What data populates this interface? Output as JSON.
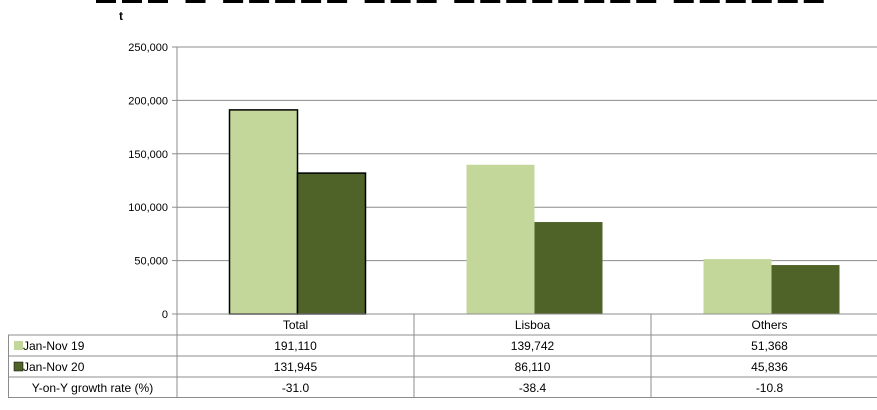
{
  "chart_data": {
    "type": "bar",
    "title": "",
    "unit_label": "t",
    "categories": [
      "Total",
      "Lisboa",
      "Others"
    ],
    "series": [
      {
        "name": "Jan-Nov 19",
        "values": [
          191110,
          139742,
          51368
        ],
        "labels": [
          "191,110",
          "139,742",
          "51,368"
        ],
        "color": "#c4d79b"
      },
      {
        "name": "Jan-Nov 20",
        "values": [
          131945,
          86110,
          45836
        ],
        "labels": [
          "131,945",
          "86,110",
          "45,836"
        ],
        "color": "#4f6228"
      }
    ],
    "growth_row": {
      "label": "Y-on-Y growth rate (%)",
      "values": [
        "-31.0",
        "-38.4",
        "-10.8"
      ]
    },
    "ylim": [
      0,
      250000
    ],
    "yticks": [
      0,
      50000,
      100000,
      150000,
      200000,
      250000
    ],
    "ytick_labels": [
      "0",
      "50,000",
      "100,000",
      "150,000",
      "200,000",
      "250,000"
    ],
    "grid": true,
    "legend": "data-table"
  }
}
